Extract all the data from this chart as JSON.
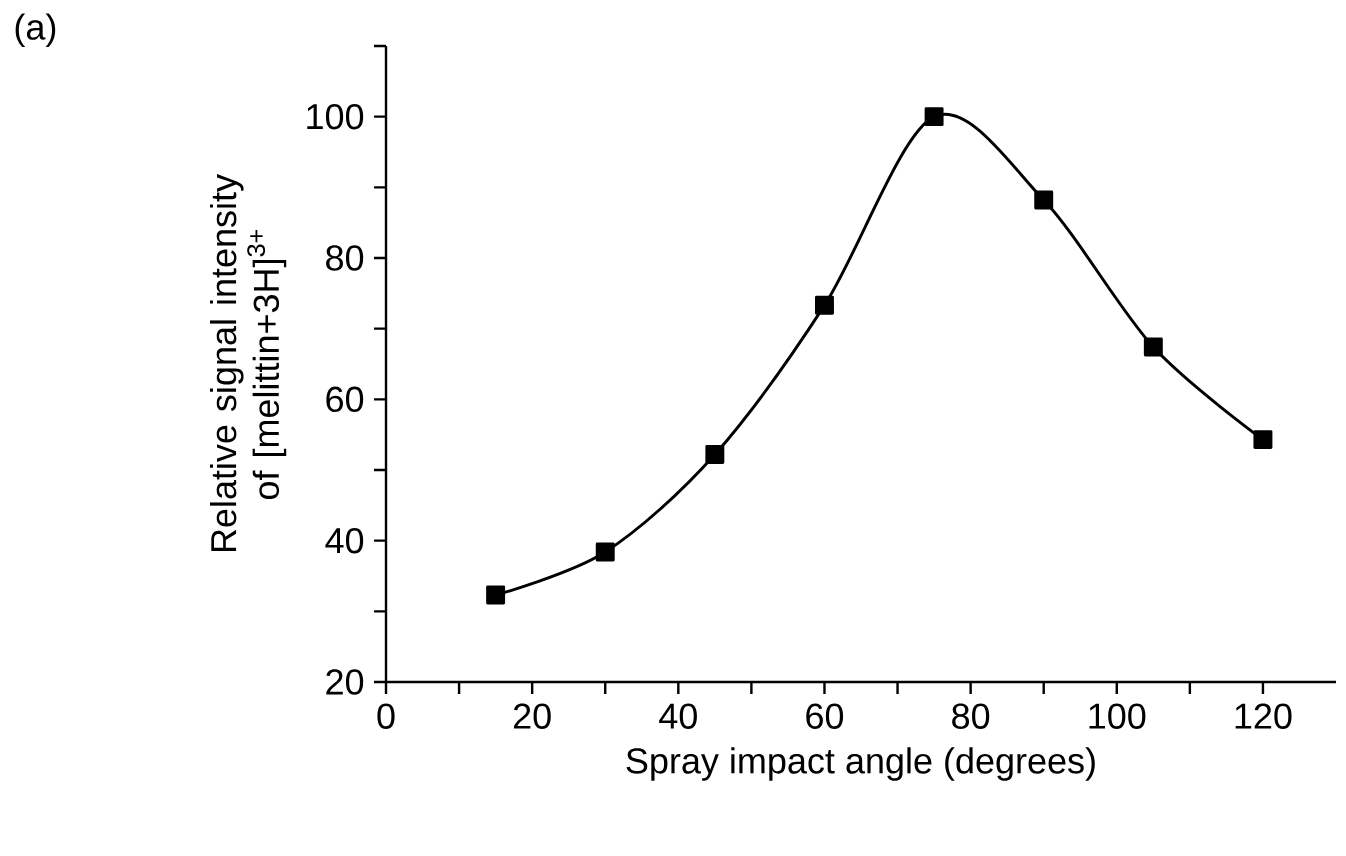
{
  "chart_data": {
    "type": "line",
    "xlabel": "Spray impact angle (degrees)",
    "ylabel": "Relative signal intensity of [melittin+3H]$^{3+}$",
    "annotations": [
      "(a)"
    ],
    "x": [
      15,
      30,
      45,
      60,
      75,
      90,
      105,
      120
    ],
    "series": [
      {
        "color": "#000000",
        "values": [
          32.3,
          38.4,
          52.2,
          73.3,
          100,
          88.2,
          67.4,
          54.3
        ]
      }
    ],
    "xlim": [
      0,
      130
    ],
    "ylim": [
      20,
      110
    ],
    "xticks": [
      0,
      {
        "value": 10,
        "label": null
      },
      20,
      {
        "value": 30,
        "label": null
      },
      40,
      {
        "value": 50,
        "label": null
      },
      60,
      {
        "value": 70,
        "label": null
      },
      80,
      {
        "value": 90,
        "label": null
      },
      100,
      {
        "value": 110,
        "label": null
      },
      120
    ],
    "yticks": [
      20,
      {
        "value": 30,
        "label": null
      },
      40,
      {
        "value": 50,
        "label": null
      },
      60,
      {
        "value": 70,
        "label": null
      },
      80,
      {
        "value": 90,
        "label": null
      },
      100,
      {
        "value": 110,
        "label": null
      }
    ],
    "marker": "square",
    "line_style": "solid"
  }
}
